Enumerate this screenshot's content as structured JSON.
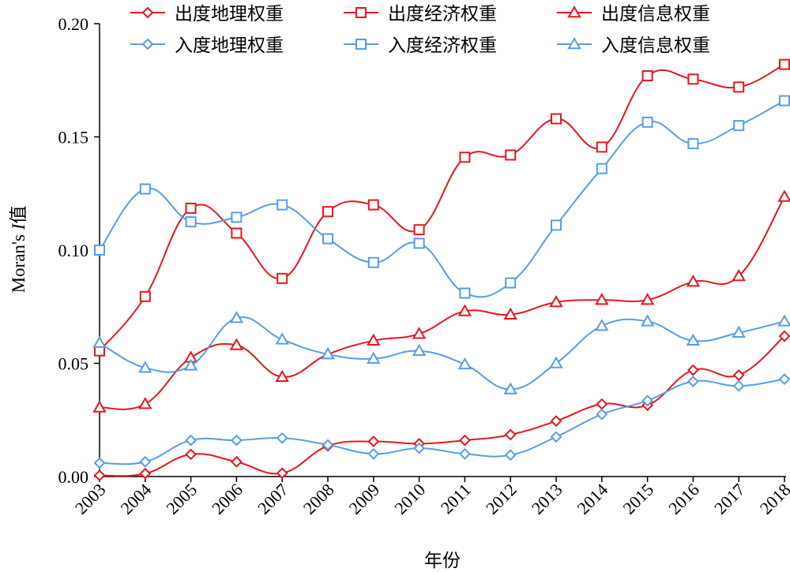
{
  "chart_data": {
    "type": "line",
    "title": "",
    "xlabel": "年份",
    "ylabel_main": "Moran's ",
    "ylabel_italic": "I",
    "ylabel_suffix": "值",
    "ylim": [
      0,
      0.2
    ],
    "yticks": [
      "0.00",
      "0.05",
      "0.10",
      "0.15",
      "0.20"
    ],
    "ytick_values": [
      0,
      0.05,
      0.1,
      0.15,
      0.2
    ],
    "categories": [
      "2003",
      "2004",
      "2005",
      "2006",
      "2007",
      "2008",
      "2009",
      "2010",
      "2011",
      "2012",
      "2013",
      "2014",
      "2015",
      "2016",
      "2017",
      "2018"
    ],
    "grid": false,
    "legend_position": "top",
    "series": [
      {
        "name": "出度地理权重",
        "color": "#e8161e",
        "marker": "diamond",
        "values": [
          0.0005,
          0.0013,
          0.0098,
          0.0065,
          0.0015,
          0.0135,
          0.0155,
          0.0145,
          0.016,
          0.0185,
          0.0245,
          0.032,
          0.0315,
          0.047,
          0.0448,
          0.062
        ]
      },
      {
        "name": "出度经济权重",
        "color": "#e8161e",
        "marker": "square",
        "values": [
          0.0555,
          0.0795,
          0.1185,
          0.1075,
          0.0875,
          0.117,
          0.12,
          0.109,
          0.141,
          0.142,
          0.158,
          0.1455,
          0.177,
          0.1755,
          0.172,
          0.182
        ]
      },
      {
        "name": "出度信息权重",
        "color": "#e8161e",
        "marker": "triangle",
        "values": [
          0.0305,
          0.032,
          0.0525,
          0.058,
          0.044,
          0.054,
          0.06,
          0.063,
          0.073,
          0.0715,
          0.077,
          0.078,
          0.078,
          0.086,
          0.0885,
          0.1235
        ]
      },
      {
        "name": "入度地理权重",
        "color": "#579de8",
        "marker": "diamond",
        "values": [
          0.006,
          0.0065,
          0.016,
          0.016,
          0.017,
          0.014,
          0.01,
          0.0125,
          0.01,
          0.0095,
          0.0175,
          0.0275,
          0.0335,
          0.042,
          0.04,
          0.043
        ]
      },
      {
        "name": "入度经济权重",
        "color": "#579de8",
        "marker": "square",
        "values": [
          0.1,
          0.127,
          0.1125,
          0.1145,
          0.12,
          0.105,
          0.0945,
          0.103,
          0.081,
          0.0855,
          0.111,
          0.136,
          0.1565,
          0.147,
          0.155,
          0.166
        ]
      },
      {
        "name": "入度信息权重",
        "color": "#579de8",
        "marker": "triangle",
        "values": [
          0.059,
          0.048,
          0.049,
          0.07,
          0.0605,
          0.054,
          0.052,
          0.0555,
          0.0495,
          0.0385,
          0.05,
          0.0665,
          0.0685,
          0.06,
          0.0635,
          0.0685
        ]
      }
    ]
  }
}
